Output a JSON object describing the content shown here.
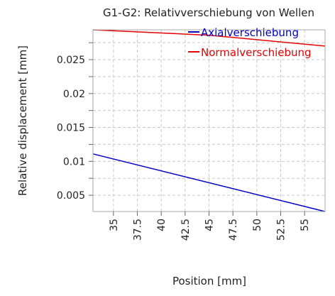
{
  "chart_data": {
    "type": "line",
    "title": "G1-G2: Relativverschiebung von Wellen",
    "xlabel": "Position [mm]",
    "ylabel": "Relative displacement [mm]",
    "xlim": [
      32.86,
      57.14
    ],
    "ylim": [
      0.0026,
      0.0294
    ],
    "x_ticks": [
      35,
      37.5,
      40,
      42.5,
      45,
      47.5,
      50,
      52.5,
      55
    ],
    "x_tick_labels": [
      "35",
      "37.5",
      "40",
      "42.5",
      "45",
      "47.5",
      "50",
      "52.5",
      "55"
    ],
    "y_ticks": [
      0.005,
      0.01,
      0.015,
      0.02,
      0.025
    ],
    "y_tick_labels": [
      "0.005",
      "0.01",
      "0.015",
      "0.02",
      "0.025"
    ],
    "grid": true,
    "legend_position": "top-right",
    "series": [
      {
        "name": "Axialverschiebung",
        "color": "#0000c8",
        "x": [
          32.86,
          57.14
        ],
        "y": [
          0.0111,
          0.0026
        ]
      },
      {
        "name": "Normalverschiebung",
        "color": "#e60000",
        "x": [
          32.86,
          45.0,
          57.14
        ],
        "y": [
          0.0294,
          0.0286,
          0.027
        ]
      }
    ]
  }
}
